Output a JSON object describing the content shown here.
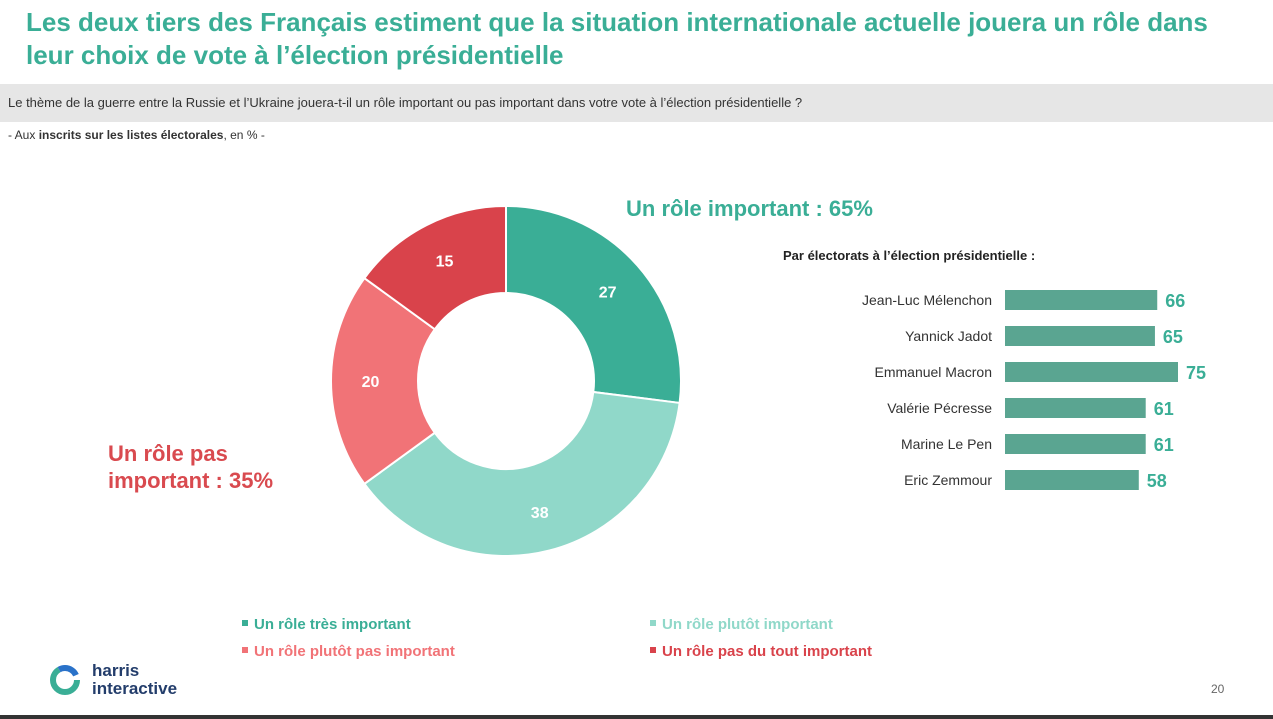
{
  "title": "Les deux tiers des Français estiment que la situation internationale actuelle jouera un rôle dans leur choix de vote à l’élection présidentielle",
  "question": "Le thème de la guerre entre la Russie et l’Ukraine jouera-t-il un rôle important ou pas important dans votre vote à l’élection présidentielle ?",
  "base": {
    "prefix": "- Aux ",
    "bold": "inscrits sur les listes électorales",
    "suffix": ", en % -"
  },
  "summary": {
    "important": "Un rôle important : 65%",
    "not_important_line1": "Un rôle pas",
    "not_important_line2": "important : 35%"
  },
  "bars_title": "Par électorats à l’élection présidentielle :",
  "page_number": "20",
  "logo": {
    "line1": "harris",
    "line2": "interactive"
  },
  "colors": {
    "title_green": "#3aae96",
    "very_important": "#3aae96",
    "rather_important": "#90d8c9",
    "rather_not_important": "#f17377",
    "not_at_all_important": "#d9434b",
    "bar": "#5aa591",
    "bar_label": "#3aae96",
    "not_important_text": "#d94a4f"
  },
  "chart_data": [
    {
      "type": "pie",
      "variant": "donut",
      "categories": [
        "Un rôle très important",
        "Un rôle plutôt important",
        "Un rôle plutôt pas important",
        "Un rôle pas du tout important"
      ],
      "values": [
        27,
        38,
        20,
        15
      ],
      "colors": [
        "#3aae96",
        "#90d8c9",
        "#f17377",
        "#d9434b"
      ],
      "legend": "bottom"
    },
    {
      "type": "bar",
      "orientation": "horizontal",
      "title": "Par électorats à l’élection présidentielle :",
      "categories": [
        "Jean-Luc Mélenchon",
        "Yannick Jadot",
        "Emmanuel Macron",
        "Valérie Pécresse",
        "Marine Le Pen",
        "Eric Zemmour"
      ],
      "values": [
        66,
        65,
        75,
        61,
        61,
        58
      ],
      "xlim": [
        0,
        75
      ]
    }
  ]
}
